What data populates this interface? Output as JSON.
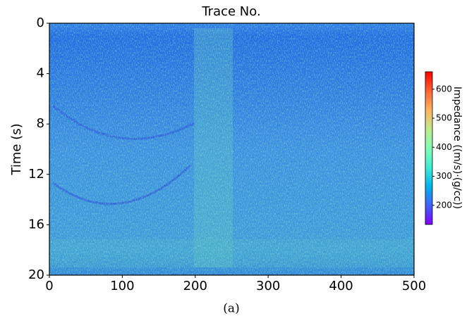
{
  "chart_data": {
    "type": "heatmap",
    "title": "Trace No.",
    "ylabel": "Time (s)",
    "xlim": [
      0,
      500
    ],
    "xticks": [
      0,
      100,
      200,
      300,
      400,
      500
    ],
    "ylim": [
      20,
      0
    ],
    "yticks": [
      0,
      4,
      8,
      12,
      16,
      20
    ],
    "colormap": "rainbow",
    "colorbar": {
      "label": "Impedance ((m/s)·(g/cc))",
      "lim": [
        134,
        660
      ],
      "ticks": [
        200,
        300,
        400,
        500,
        600
      ]
    },
    "caption": "(a)"
  }
}
